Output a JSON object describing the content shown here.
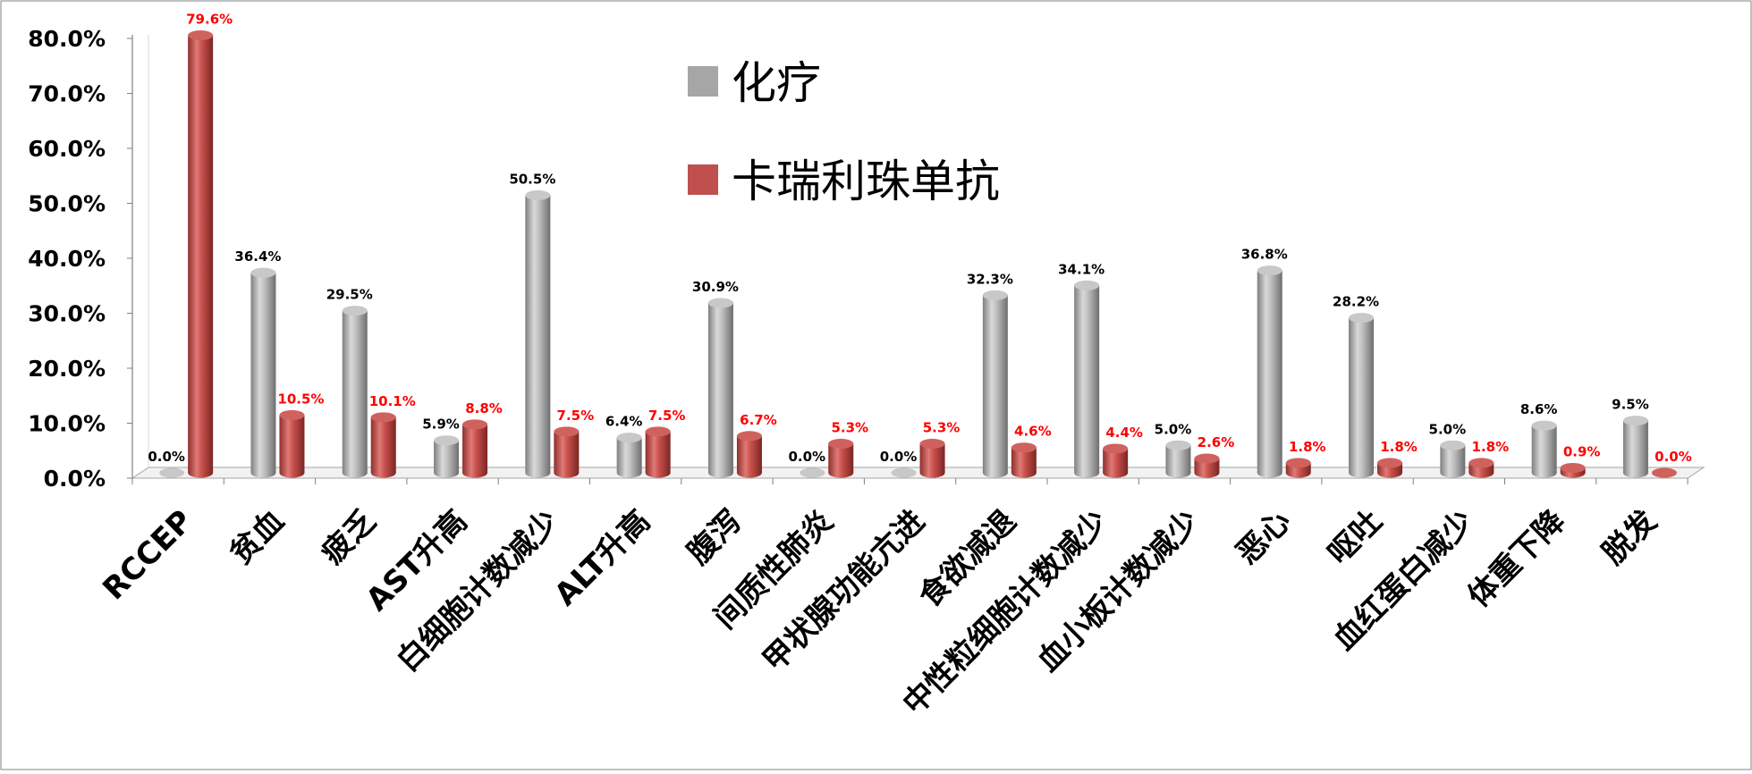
{
  "chart_data": {
    "type": "bar",
    "title": "",
    "xlabel": "",
    "ylabel": "",
    "ylim": [
      0,
      80
    ],
    "y_ticks": [
      "0.0%",
      "10.0%",
      "20.0%",
      "30.0%",
      "40.0%",
      "50.0%",
      "60.0%",
      "70.0%",
      "80.0%"
    ],
    "categories": [
      "RCCEP",
      "贫血",
      "疲乏",
      "AST升高",
      "白细胞计数减少",
      "ALT升高",
      "腹泻",
      "间质性肺炎",
      "甲状腺功能亢进",
      "食欲减退",
      "中性粒细胞计数减少",
      "血小板计数减少",
      "恶心",
      "呕吐",
      "血红蛋白减少",
      "体重下降",
      "脱发"
    ],
    "series": [
      {
        "name": "化疗",
        "color": "#a6a6a6",
        "values": [
          0.0,
          36.4,
          29.5,
          5.9,
          50.5,
          6.4,
          30.9,
          0.0,
          0.0,
          32.3,
          34.1,
          5.0,
          36.8,
          28.2,
          5.0,
          8.6,
          9.5
        ],
        "labels": [
          "0.0%",
          "36.4%",
          "29.5%",
          "5.9%",
          "50.5%",
          "6.4%",
          "30.9%",
          "0.0%",
          "0.0%",
          "32.3%",
          "34.1%",
          "5.0%",
          "36.8%",
          "28.2%",
          "5.0%",
          "8.6%",
          "9.5%"
        ],
        "label_color": "#000000"
      },
      {
        "name": "卡瑞利珠单抗",
        "color": "#c0504d",
        "values": [
          79.6,
          10.5,
          10.1,
          8.8,
          7.5,
          7.5,
          6.7,
          5.3,
          5.3,
          4.6,
          4.4,
          2.6,
          1.8,
          1.8,
          1.8,
          0.9,
          0.0
        ],
        "labels": [
          "79.6%",
          "10.5%",
          "10.1%",
          "8.8%",
          "7.5%",
          "7.5%",
          "6.7%",
          "5.3%",
          "5.3%",
          "4.6%",
          "4.4%",
          "2.6%",
          "1.8%",
          "1.8%",
          "1.8%",
          "0.9%",
          "0.0%"
        ],
        "label_color": "#ff0000"
      }
    ],
    "legend_position": "top-center",
    "gridlines": false,
    "style": "3d-cylinder"
  }
}
